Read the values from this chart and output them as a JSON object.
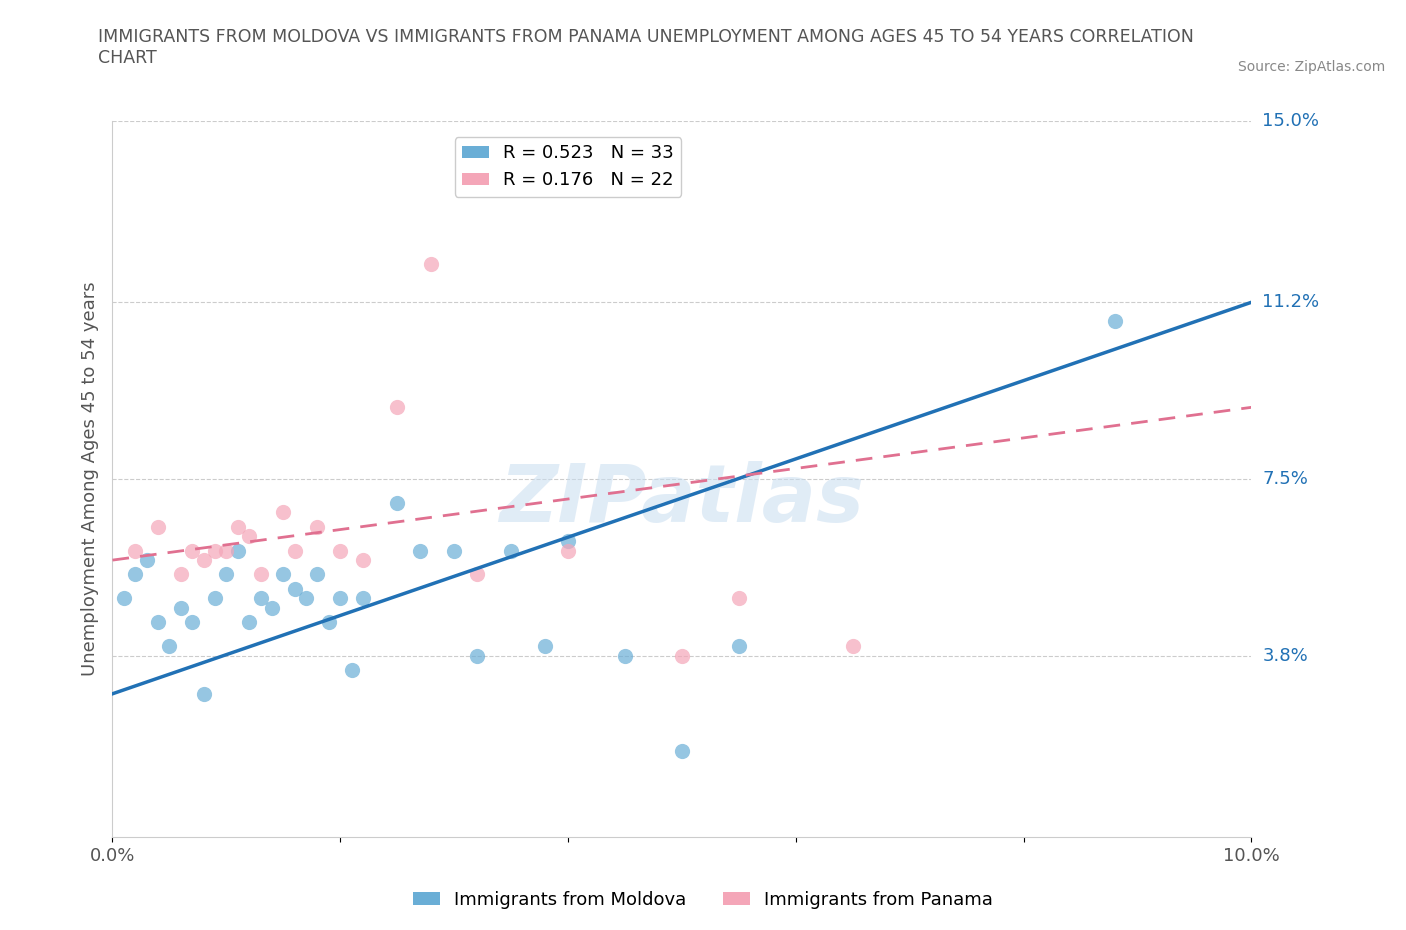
{
  "title": "IMMIGRANTS FROM MOLDOVA VS IMMIGRANTS FROM PANAMA UNEMPLOYMENT AMONG AGES 45 TO 54 YEARS CORRELATION\nCHART",
  "source": "Source: ZipAtlas.com",
  "ylabel": "Unemployment Among Ages 45 to 54 years",
  "watermark": "ZIPatlas",
  "xlim": [
    0.0,
    0.1
  ],
  "ylim": [
    0.0,
    0.15
  ],
  "ytick_labels_right": [
    "15.0%",
    "11.2%",
    "7.5%",
    "3.8%"
  ],
  "ytick_values_right": [
    0.15,
    0.112,
    0.075,
    0.038
  ],
  "moldova_color": "#6aaed6",
  "panama_color": "#f4a6b8",
  "moldova_line_color": "#2171b5",
  "panama_line_color": "#e07090",
  "R_moldova": 0.523,
  "N_moldova": 33,
  "R_panama": 0.176,
  "N_panama": 22,
  "moldova_x": [
    0.001,
    0.002,
    0.003,
    0.004,
    0.005,
    0.006,
    0.007,
    0.008,
    0.009,
    0.01,
    0.011,
    0.012,
    0.013,
    0.014,
    0.015,
    0.016,
    0.017,
    0.018,
    0.019,
    0.02,
    0.021,
    0.022,
    0.025,
    0.027,
    0.03,
    0.032,
    0.035,
    0.038,
    0.04,
    0.045,
    0.05,
    0.055,
    0.088
  ],
  "moldova_y": [
    0.05,
    0.055,
    0.058,
    0.045,
    0.04,
    0.048,
    0.045,
    0.03,
    0.05,
    0.055,
    0.06,
    0.045,
    0.05,
    0.048,
    0.055,
    0.052,
    0.05,
    0.055,
    0.045,
    0.05,
    0.035,
    0.05,
    0.07,
    0.06,
    0.06,
    0.038,
    0.06,
    0.04,
    0.062,
    0.038,
    0.018,
    0.04,
    0.108
  ],
  "panama_x": [
    0.002,
    0.004,
    0.006,
    0.007,
    0.008,
    0.009,
    0.01,
    0.011,
    0.012,
    0.013,
    0.015,
    0.016,
    0.018,
    0.02,
    0.022,
    0.025,
    0.028,
    0.032,
    0.04,
    0.05,
    0.055,
    0.065
  ],
  "panama_y": [
    0.06,
    0.065,
    0.055,
    0.06,
    0.058,
    0.06,
    0.06,
    0.065,
    0.063,
    0.055,
    0.068,
    0.06,
    0.065,
    0.06,
    0.058,
    0.09,
    0.12,
    0.055,
    0.06,
    0.038,
    0.05,
    0.04
  ],
  "moldova_line_x0": 0.0,
  "moldova_line_y0": 0.03,
  "moldova_line_x1": 0.1,
  "moldova_line_y1": 0.112,
  "panama_line_x0": 0.0,
  "panama_line_y0": 0.058,
  "panama_line_x1": 0.1,
  "panama_line_y1": 0.09
}
